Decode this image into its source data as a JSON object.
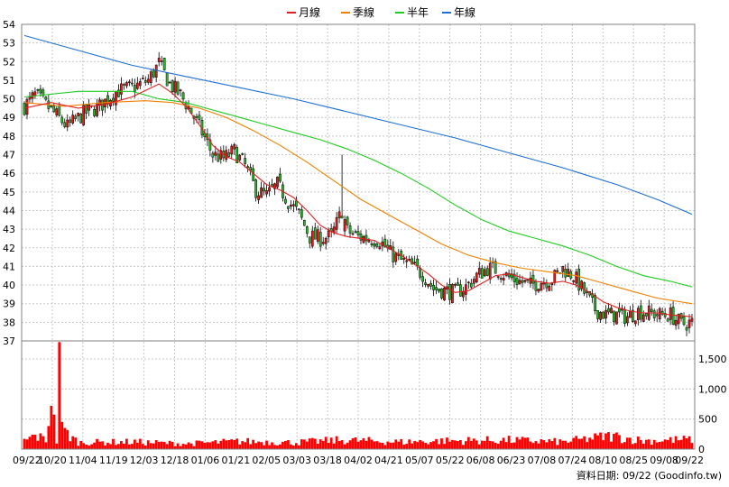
{
  "chart_data": {
    "type": "candlestick",
    "legend": [
      {
        "name": "月線",
        "color": "#e02020"
      },
      {
        "name": "季線",
        "color": "#f08000"
      },
      {
        "name": "半年",
        "color": "#20cc20"
      },
      {
        "name": "年線",
        "color": "#1f6fd6"
      }
    ],
    "price_axis": {
      "min": 37,
      "max": 54,
      "ticks": [
        37,
        38,
        39,
        40,
        41,
        42,
        43,
        44,
        45,
        46,
        47,
        48,
        49,
        50,
        51,
        52,
        53,
        54
      ]
    },
    "volume_axis": {
      "min": 0,
      "max": 1800,
      "ticks": [
        0,
        500,
        1000,
        1500
      ],
      "tick_labels": [
        "0",
        "500",
        "1,000",
        "1,500"
      ]
    },
    "x_labels": [
      "09/22",
      "10/20",
      "11/04",
      "11/19",
      "12/03",
      "12/18",
      "01/06",
      "01/21",
      "02/05",
      "03/03",
      "03/18",
      "04/02",
      "04/21",
      "05/07",
      "05/22",
      "06/08",
      "06/23",
      "07/08",
      "07/24",
      "08/10",
      "08/25",
      "09/08",
      "09/22"
    ],
    "close_anchors": [
      [
        0,
        49.6
      ],
      [
        4,
        50.2
      ],
      [
        10,
        49.4
      ],
      [
        16,
        48.5
      ],
      [
        22,
        49.2
      ],
      [
        28,
        49.6
      ],
      [
        34,
        50.4
      ],
      [
        40,
        50.6
      ],
      [
        46,
        51.0
      ],
      [
        50,
        51.9
      ],
      [
        54,
        50.8
      ],
      [
        58,
        50.2
      ],
      [
        62,
        49.3
      ],
      [
        66,
        48.2
      ],
      [
        70,
        47.0
      ],
      [
        74,
        46.8
      ],
      [
        78,
        47.2
      ],
      [
        82,
        46.4
      ],
      [
        86,
        45.1
      ],
      [
        90,
        44.8
      ],
      [
        94,
        45.4
      ],
      [
        98,
        44.5
      ],
      [
        102,
        43.8
      ],
      [
        106,
        42.6
      ],
      [
        110,
        42.5
      ],
      [
        114,
        42.6
      ],
      [
        118,
        44.0
      ],
      [
        120,
        42.9
      ],
      [
        124,
        42.6
      ],
      [
        128,
        42.5
      ],
      [
        132,
        42.4
      ],
      [
        136,
        41.7
      ],
      [
        140,
        41.3
      ],
      [
        144,
        41.0
      ],
      [
        148,
        40.6
      ],
      [
        152,
        39.8
      ],
      [
        156,
        39.7
      ],
      [
        160,
        39.6
      ],
      [
        164,
        39.9
      ],
      [
        168,
        40.5
      ],
      [
        172,
        40.9
      ],
      [
        176,
        40.8
      ],
      [
        180,
        40.4
      ],
      [
        184,
        40.2
      ],
      [
        188,
        40.0
      ],
      [
        192,
        40.2
      ],
      [
        196,
        40.3
      ],
      [
        200,
        40.9
      ],
      [
        204,
        40.5
      ],
      [
        208,
        39.6
      ],
      [
        212,
        38.7
      ],
      [
        216,
        38.4
      ],
      [
        220,
        38.4
      ],
      [
        224,
        38.3
      ],
      [
        228,
        38.6
      ],
      [
        232,
        38.5
      ],
      [
        236,
        38.4
      ],
      [
        240,
        38.4
      ],
      [
        244,
        37.9
      ],
      [
        248,
        38.0
      ]
    ],
    "volume_anchors": [
      [
        0,
        140
      ],
      [
        4,
        220
      ],
      [
        8,
        160
      ],
      [
        10,
        720
      ],
      [
        12,
        130
      ],
      [
        13,
        1780
      ],
      [
        14,
        330
      ],
      [
        20,
        110
      ],
      [
        40,
        120
      ],
      [
        60,
        90
      ],
      [
        80,
        130
      ],
      [
        100,
        110
      ],
      [
        118,
        150
      ],
      [
        140,
        120
      ],
      [
        160,
        140
      ],
      [
        180,
        150
      ],
      [
        200,
        120
      ],
      [
        218,
        220
      ],
      [
        230,
        140
      ],
      [
        248,
        160
      ]
    ],
    "ma_month": [
      [
        0,
        49.5
      ],
      [
        10,
        49.8
      ],
      [
        20,
        49.5
      ],
      [
        30,
        49.7
      ],
      [
        40,
        50.1
      ],
      [
        50,
        50.8
      ],
      [
        55,
        50.3
      ],
      [
        60,
        49.6
      ],
      [
        65,
        48.6
      ],
      [
        70,
        47.5
      ],
      [
        75,
        46.9
      ],
      [
        80,
        46.6
      ],
      [
        85,
        46.0
      ],
      [
        90,
        45.4
      ],
      [
        95,
        45.1
      ],
      [
        100,
        44.7
      ],
      [
        105,
        44.0
      ],
      [
        110,
        43.2
      ],
      [
        115,
        42.8
      ],
      [
        120,
        42.6
      ],
      [
        125,
        42.5
      ],
      [
        130,
        42.4
      ],
      [
        135,
        42.0
      ],
      [
        140,
        41.6
      ],
      [
        145,
        41.1
      ],
      [
        150,
        40.6
      ],
      [
        155,
        40.0
      ],
      [
        160,
        39.6
      ],
      [
        165,
        39.7
      ],
      [
        170,
        40.1
      ],
      [
        175,
        40.5
      ],
      [
        180,
        40.6
      ],
      [
        185,
        40.4
      ],
      [
        190,
        40.2
      ],
      [
        195,
        40.1
      ],
      [
        200,
        40.2
      ],
      [
        205,
        40.0
      ],
      [
        210,
        39.6
      ],
      [
        215,
        39.1
      ],
      [
        220,
        38.8
      ],
      [
        225,
        38.6
      ],
      [
        230,
        38.5
      ],
      [
        235,
        38.5
      ],
      [
        240,
        38.4
      ],
      [
        248,
        38.3
      ]
    ],
    "ma_quarter": [
      [
        0,
        49.8
      ],
      [
        15,
        49.6
      ],
      [
        30,
        49.8
      ],
      [
        45,
        49.9
      ],
      [
        55,
        49.8
      ],
      [
        65,
        49.5
      ],
      [
        75,
        49.0
      ],
      [
        85,
        48.3
      ],
      [
        95,
        47.5
      ],
      [
        105,
        46.6
      ],
      [
        115,
        45.6
      ],
      [
        125,
        44.6
      ],
      [
        135,
        43.8
      ],
      [
        145,
        43.0
      ],
      [
        155,
        42.2
      ],
      [
        165,
        41.6
      ],
      [
        175,
        41.2
      ],
      [
        185,
        40.9
      ],
      [
        195,
        40.7
      ],
      [
        205,
        40.5
      ],
      [
        215,
        40.1
      ],
      [
        225,
        39.7
      ],
      [
        235,
        39.3
      ],
      [
        248,
        39.0
      ]
    ],
    "ma_half": [
      [
        0,
        50.1
      ],
      [
        20,
        50.4
      ],
      [
        40,
        50.4
      ],
      [
        50,
        50.0
      ],
      [
        60,
        49.8
      ],
      [
        70,
        49.4
      ],
      [
        80,
        49.0
      ],
      [
        90,
        48.6
      ],
      [
        100,
        48.2
      ],
      [
        110,
        47.8
      ],
      [
        120,
        47.3
      ],
      [
        130,
        46.7
      ],
      [
        140,
        46.0
      ],
      [
        150,
        45.2
      ],
      [
        160,
        44.3
      ],
      [
        170,
        43.5
      ],
      [
        180,
        42.9
      ],
      [
        190,
        42.5
      ],
      [
        200,
        42.1
      ],
      [
        210,
        41.6
      ],
      [
        220,
        41.0
      ],
      [
        230,
        40.5
      ],
      [
        240,
        40.2
      ],
      [
        248,
        39.9
      ]
    ],
    "ma_year": [
      [
        0,
        53.4
      ],
      [
        20,
        52.6
      ],
      [
        40,
        51.8
      ],
      [
        60,
        51.2
      ],
      [
        80,
        50.6
      ],
      [
        100,
        50.0
      ],
      [
        120,
        49.3
      ],
      [
        140,
        48.6
      ],
      [
        160,
        47.9
      ],
      [
        180,
        47.1
      ],
      [
        200,
        46.3
      ],
      [
        220,
        45.4
      ],
      [
        235,
        44.6
      ],
      [
        248,
        43.8
      ]
    ],
    "footer": "資料日期: 09/22  (Goodinfo.tw)"
  }
}
